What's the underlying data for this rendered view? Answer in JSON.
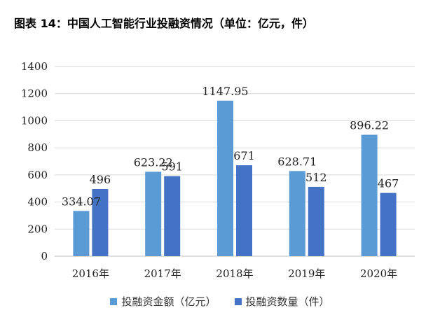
{
  "title": "图表 14：中国人工智能行业投融资情况（单位：亿元，件）",
  "colors": {
    "amount": "#5B9BD5",
    "count": "#4472C4",
    "grid": "#D9D9D9"
  },
  "chart_data": {
    "type": "bar",
    "categories": [
      "2016年",
      "2017年",
      "2018年",
      "2019年",
      "2020年"
    ],
    "series": [
      {
        "name": "投融资金额（亿元）",
        "values": [
          334.07,
          623.22,
          1147.95,
          628.71,
          896.22
        ],
        "labels": [
          "334.07",
          "623.22",
          "1147.95",
          "628.71",
          "896.22"
        ]
      },
      {
        "name": "投融资数量（件）",
        "values": [
          496,
          591,
          671,
          512,
          467
        ],
        "labels": [
          "496",
          "591",
          "671",
          "512",
          "467"
        ]
      }
    ],
    "ylim": [
      0,
      1400
    ],
    "yticks": [
      "0",
      "200",
      "400",
      "600",
      "800",
      "1000",
      "1200",
      "1400"
    ],
    "grid": true,
    "legend": "bottom"
  }
}
